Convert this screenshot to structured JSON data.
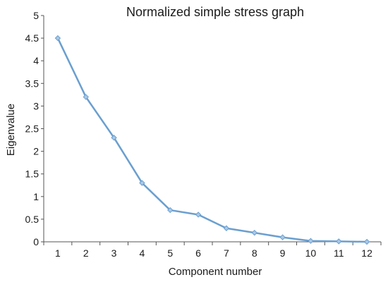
{
  "chart_data": {
    "type": "line",
    "title": "Normalized simple stress graph",
    "xlabel": "Component number",
    "ylabel": "Eigenvalue",
    "x": [
      1,
      2,
      3,
      4,
      5,
      6,
      7,
      8,
      9,
      10,
      11,
      12
    ],
    "series": [
      {
        "values": [
          4.5,
          3.2,
          2.3,
          1.3,
          0.7,
          0.6,
          0.3,
          0.2,
          0.1,
          0.02,
          0.01,
          0.0
        ]
      }
    ],
    "xticks": [
      "1",
      "2",
      "3",
      "4",
      "5",
      "6",
      "7",
      "8",
      "9",
      "10",
      "11",
      "12"
    ],
    "yticks": [
      "0",
      "0.5",
      "1",
      "1.5",
      "2",
      "2.5",
      "3",
      "3.5",
      "4",
      "4.5",
      "5"
    ],
    "ylim": [
      0,
      5
    ],
    "grid": false,
    "colors": {
      "line": "#6a9fcf",
      "marker": "#a9c8e6",
      "axis": "#555555"
    }
  }
}
